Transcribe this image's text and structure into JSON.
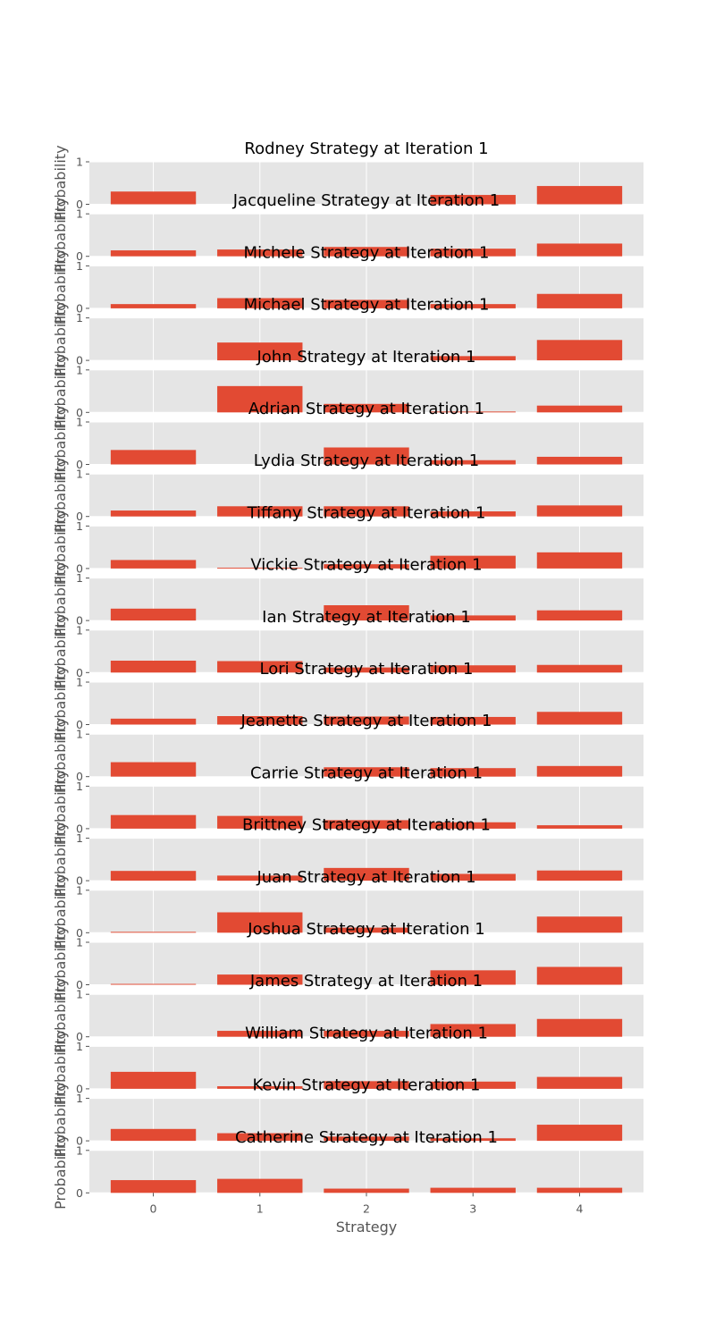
{
  "chart_data": {
    "type": "bar",
    "categories": [
      "0",
      "1",
      "2",
      "3",
      "4"
    ],
    "xlabel": "Strategy",
    "ylabel": "Probability",
    "ylim": [
      0,
      1
    ],
    "yticks": [
      "0",
      "1"
    ],
    "grid": true,
    "style": "ggplot",
    "colors": {
      "bar": "#E24A33",
      "panel_bg": "#E5E5E5",
      "grid": "#FFFFFF",
      "text": "#555555"
    },
    "panels": [
      {
        "title": "Rodney Strategy at Iteration 1",
        "values": [
          0.3,
          0.0,
          0.0,
          0.22,
          0.43
        ]
      },
      {
        "title": "Jacqueline Strategy at Iteration 1",
        "values": [
          0.14,
          0.16,
          0.22,
          0.18,
          0.3
        ]
      },
      {
        "title": "Michele Strategy at Iteration 1",
        "values": [
          0.1,
          0.24,
          0.2,
          0.1,
          0.34
        ]
      },
      {
        "title": "Michael Strategy at Iteration 1",
        "values": [
          0.0,
          0.42,
          0.0,
          0.1,
          0.48
        ]
      },
      {
        "title": "John Strategy at Iteration 1",
        "values": [
          0.0,
          0.62,
          0.2,
          0.02,
          0.16
        ]
      },
      {
        "title": "Adrian Strategy at Iteration 1",
        "values": [
          0.34,
          0.0,
          0.4,
          0.1,
          0.18
        ]
      },
      {
        "title": "Lydia Strategy at Iteration 1",
        "values": [
          0.14,
          0.24,
          0.24,
          0.12,
          0.26
        ]
      },
      {
        "title": "Tiffany Strategy at Iteration 1",
        "values": [
          0.2,
          0.02,
          0.1,
          0.3,
          0.38
        ]
      },
      {
        "title": "Vickie Strategy at Iteration 1",
        "values": [
          0.28,
          0.0,
          0.36,
          0.12,
          0.24
        ]
      },
      {
        "title": "Ian Strategy at Iteration 1",
        "values": [
          0.28,
          0.27,
          0.12,
          0.17,
          0.18
        ]
      },
      {
        "title": "Lori Strategy at Iteration 1",
        "values": [
          0.14,
          0.2,
          0.19,
          0.18,
          0.3
        ]
      },
      {
        "title": "Jeanette Strategy at Iteration 1",
        "values": [
          0.34,
          0.0,
          0.22,
          0.2,
          0.25
        ]
      },
      {
        "title": "Carrie Strategy at Iteration 1",
        "values": [
          0.32,
          0.3,
          0.2,
          0.15,
          0.08
        ]
      },
      {
        "title": "Brittney Strategy at Iteration 1",
        "values": [
          0.23,
          0.12,
          0.3,
          0.16,
          0.24
        ]
      },
      {
        "title": "Juan Strategy at Iteration 1",
        "values": [
          0.02,
          0.48,
          0.12,
          0.0,
          0.38
        ]
      },
      {
        "title": "Joshua Strategy at Iteration 1",
        "values": [
          0.02,
          0.24,
          0.0,
          0.34,
          0.42
        ]
      },
      {
        "title": "James Strategy at Iteration 1",
        "values": [
          0.0,
          0.14,
          0.14,
          0.3,
          0.42
        ]
      },
      {
        "title": "William Strategy at Iteration 1",
        "values": [
          0.4,
          0.06,
          0.18,
          0.17,
          0.28
        ]
      },
      {
        "title": "Kevin Strategy at Iteration 1",
        "values": [
          0.28,
          0.18,
          0.1,
          0.06,
          0.38
        ]
      },
      {
        "title": "Catherine Strategy at Iteration 1",
        "values": [
          0.3,
          0.33,
          0.1,
          0.12,
          0.12
        ]
      }
    ]
  }
}
